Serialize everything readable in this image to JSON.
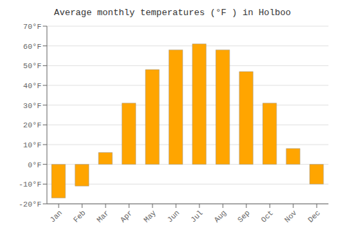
{
  "chart_data": {
    "type": "bar",
    "title": "Average monthly temperatures (°F ) in Holboo",
    "categories": [
      "Jan",
      "Feb",
      "Mar",
      "Apr",
      "May",
      "Jun",
      "Jul",
      "Aug",
      "Sep",
      "Oct",
      "Nov",
      "Dec"
    ],
    "values": [
      -17,
      -11,
      6,
      31,
      48,
      58,
      61,
      58,
      47,
      31,
      8,
      -10
    ],
    "color": "#FFA500",
    "ylim": [
      -20,
      70
    ],
    "yticks": [
      {
        "value": -20,
        "label": "-20°F"
      },
      {
        "value": -10,
        "label": "-10°F"
      },
      {
        "value": 0,
        "label": "0°F"
      },
      {
        "value": 10,
        "label": "10°F"
      },
      {
        "value": 20,
        "label": "20°F"
      },
      {
        "value": 30,
        "label": "30°F"
      },
      {
        "value": 40,
        "label": "40°F"
      },
      {
        "value": 50,
        "label": "50°F"
      },
      {
        "value": 60,
        "label": "60°F"
      },
      {
        "value": 70,
        "label": "70°F"
      }
    ],
    "grid": true
  }
}
